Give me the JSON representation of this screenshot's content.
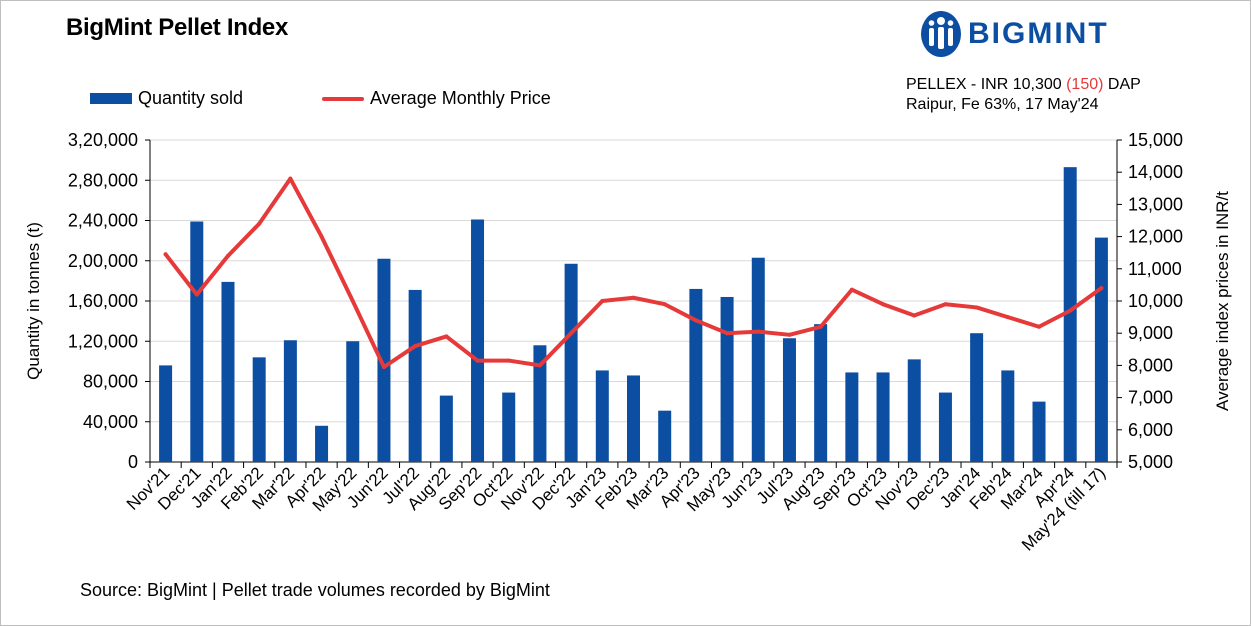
{
  "title": "BigMint Pellet Index",
  "logo": {
    "text": "BIGMINT",
    "icon": "bigmint-logo-icon"
  },
  "info": {
    "line1_prefix": "PELLEX - INR 10,300",
    "line1_change": "(150)",
    "line1_suffix": "DAP",
    "line2": "Raipur, Fe 63%, 17 May'24"
  },
  "legend": {
    "bar": "Quantity sold",
    "line": "Average Monthly Price"
  },
  "source": "Source: BigMint | Pellet trade volumes recorded by BigMint",
  "colors": {
    "bar": "#0b4ea2",
    "line": "#e63a3a",
    "grid": "#d9d9d9",
    "logo": "#0b4ea2"
  },
  "chart_data": {
    "type": "bar",
    "categories": [
      "Nov'21",
      "Dec'21",
      "Jan'22",
      "Feb'22",
      "Mar'22",
      "Apr'22",
      "May'22",
      "Jun'22",
      "Jul'22",
      "Aug'22",
      "Sep'22",
      "Oct'22",
      "Nov'22",
      "Dec'22",
      "Jan'23",
      "Feb'23",
      "Mar'23",
      "Apr'23",
      "May'23",
      "Jun'23",
      "Jul'23",
      "Aug'23",
      "Sep'23",
      "Oct'23",
      "Nov'23",
      "Dec'23",
      "Jan'24",
      "Feb'24",
      "Mar'24",
      "Apr'24",
      "May'24 (till 17)"
    ],
    "series": [
      {
        "name": "Quantity sold",
        "type": "bar",
        "axis": "left",
        "values": [
          96000,
          239000,
          179000,
          104000,
          121000,
          36000,
          120000,
          202000,
          171000,
          66000,
          241000,
          69000,
          116000,
          197000,
          91000,
          86000,
          51000,
          172000,
          164000,
          203000,
          123000,
          137000,
          89000,
          89000,
          102000,
          69000,
          128000,
          91000,
          60000,
          293000,
          223000
        ]
      },
      {
        "name": "Average Monthly Price",
        "type": "line",
        "axis": "right",
        "values": [
          11450,
          10200,
          11400,
          12400,
          13800,
          12000,
          10000,
          7950,
          8600,
          8900,
          8150,
          8150,
          8000,
          9000,
          10000,
          10100,
          9900,
          9400,
          9000,
          9050,
          8950,
          9200,
          10350,
          9900,
          9550,
          9900,
          9800,
          9500,
          9200,
          9700,
          10400
        ]
      }
    ],
    "ylabel": "Quantity in tonnes (t)",
    "y2label": "Average index prices in INR/t",
    "ylim": [
      0,
      320000
    ],
    "y2lim": [
      5000,
      15000
    ],
    "yticks": [
      "0",
      "40,000",
      "80,000",
      "1,20,000",
      "1,60,000",
      "2,00,000",
      "2,40,000",
      "2,80,000",
      "3,20,000"
    ],
    "y2ticks": [
      "5,000",
      "6,000",
      "7,000",
      "8,000",
      "9,000",
      "10,000",
      "11,000",
      "12,000",
      "13,000",
      "14,000",
      "15,000"
    ],
    "grid": true,
    "legend_position": "top-left"
  }
}
